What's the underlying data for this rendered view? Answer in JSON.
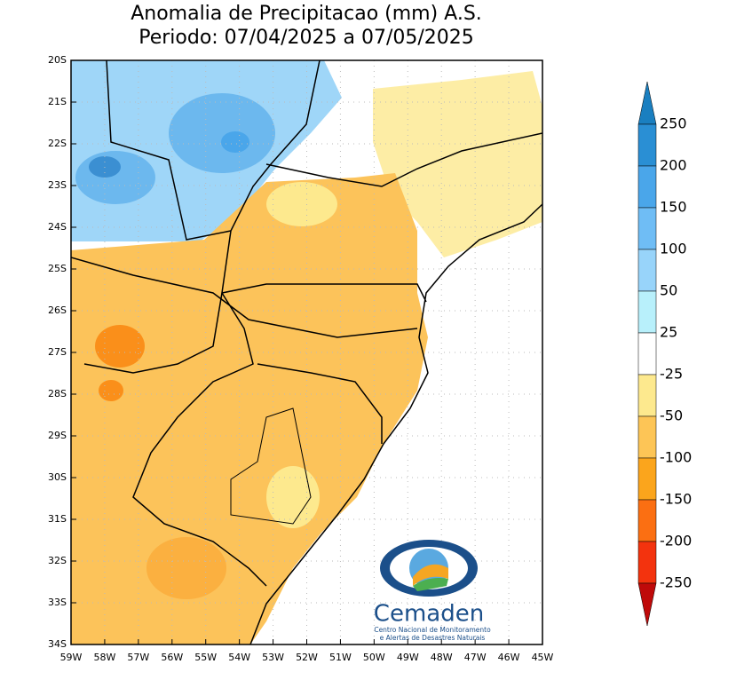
{
  "chart_data": {
    "type": "map",
    "title": "Anomalia de Precipitacao (mm) A.S.",
    "subtitle": "Periodo: 07/04/2025 a 07/05/2025",
    "xlim": [
      -59,
      -45
    ],
    "ylim": [
      -34,
      -20
    ],
    "xticks": [
      {
        "value": -59,
        "label": "59W"
      },
      {
        "value": -58,
        "label": "58W"
      },
      {
        "value": -57,
        "label": "57W"
      },
      {
        "value": -56,
        "label": "56W"
      },
      {
        "value": -55,
        "label": "55W"
      },
      {
        "value": -54,
        "label": "54W"
      },
      {
        "value": -53,
        "label": "53W"
      },
      {
        "value": -52,
        "label": "52W"
      },
      {
        "value": -51,
        "label": "51W"
      },
      {
        "value": -50,
        "label": "50W"
      },
      {
        "value": -49,
        "label": "49W"
      },
      {
        "value": -48,
        "label": "48W"
      },
      {
        "value": -47,
        "label": "47W"
      },
      {
        "value": -46,
        "label": "46W"
      },
      {
        "value": -45,
        "label": "45W"
      }
    ],
    "yticks": [
      {
        "value": -20,
        "label": "20S"
      },
      {
        "value": -21,
        "label": "21S"
      },
      {
        "value": -22,
        "label": "22S"
      },
      {
        "value": -23,
        "label": "23S"
      },
      {
        "value": -24,
        "label": "24S"
      },
      {
        "value": -25,
        "label": "25S"
      },
      {
        "value": -26,
        "label": "26S"
      },
      {
        "value": -27,
        "label": "27S"
      },
      {
        "value": -28,
        "label": "28S"
      },
      {
        "value": -29,
        "label": "29S"
      },
      {
        "value": -30,
        "label": "30S"
      },
      {
        "value": -31,
        "label": "31S"
      },
      {
        "value": -32,
        "label": "32S"
      },
      {
        "value": -33,
        "label": "33S"
      },
      {
        "value": -34,
        "label": "34S"
      }
    ],
    "grid": true,
    "colorbar": {
      "levels": [
        250,
        200,
        150,
        100,
        50,
        25,
        -25,
        -50,
        -100,
        -150,
        -200,
        -250
      ],
      "colors": [
        "#1a7fc0",
        "#2a8fd4",
        "#4aa6ea",
        "#6fbdf5",
        "#98d4fa",
        "#b8f0fb",
        "#ffffff",
        "#fde98e",
        "#fdc556",
        "#fba51c",
        "#fb6f12",
        "#f3330e",
        "#bf0a0a"
      ]
    },
    "logo": {
      "name": "Cemaden",
      "line1": "Centro Nacional de Monitoramento",
      "line2": "e Alertas de Desastres Naturais"
    }
  }
}
